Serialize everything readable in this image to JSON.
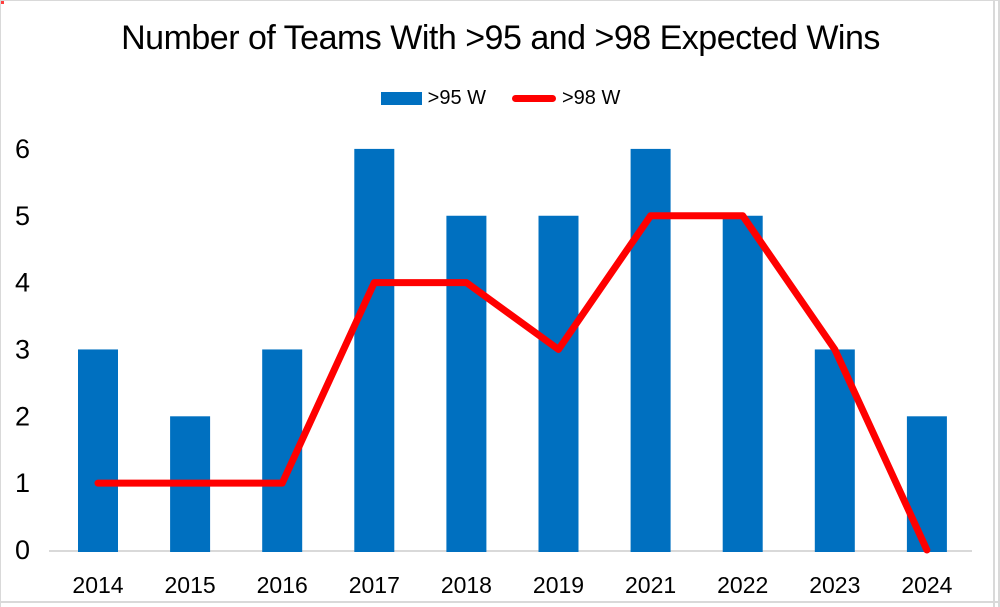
{
  "frame": {
    "background": "#FFFFFF",
    "border_color": "#D9D9D9"
  },
  "chart_data": {
    "type": "combo-bar-line",
    "title": "Number of Teams With >95 and >98 Expected Wins",
    "categories": [
      "2014",
      "2015",
      "2016",
      "2017",
      "2018",
      "2019",
      "2021",
      "2022",
      "2023",
      "2024"
    ],
    "series": [
      {
        "name": ">95 W",
        "type": "bar",
        "color": "#0070C0",
        "values": [
          3,
          2,
          3,
          6,
          5,
          5,
          6,
          5,
          3,
          2
        ]
      },
      {
        "name": ">98 W",
        "type": "line",
        "color": "#FF0000",
        "values": [
          1,
          1,
          1,
          4,
          4,
          3,
          5,
          5,
          3,
          0
        ]
      }
    ],
    "xlabel": "",
    "ylabel": "",
    "ylim": [
      0,
      6
    ],
    "yticks": [
      0,
      1,
      2,
      3,
      4,
      5,
      6
    ],
    "grid": false,
    "legend_position": "top-center",
    "axis_color": "#D9D9D9",
    "text_color": "#000000"
  }
}
